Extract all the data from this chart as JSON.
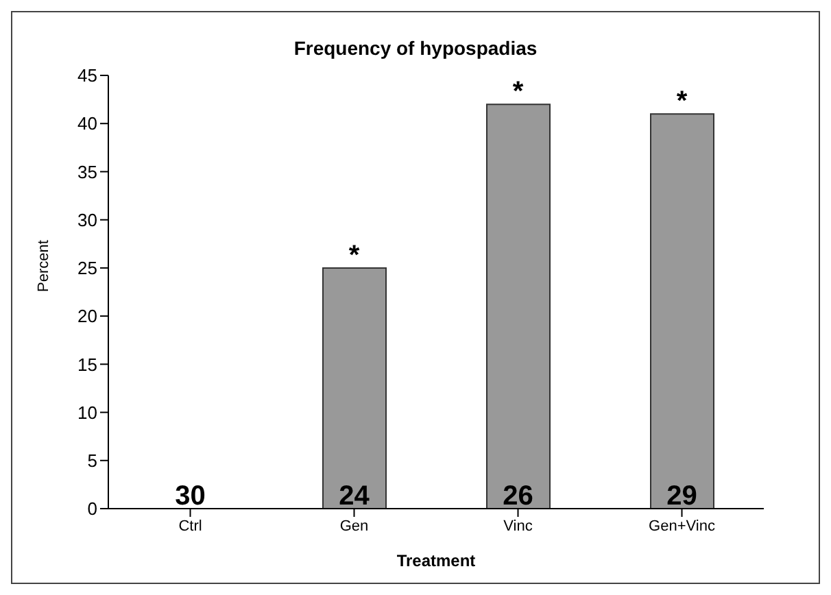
{
  "chart_data": {
    "type": "bar",
    "title": "Frequency of hypospadias",
    "xlabel": "Treatment",
    "ylabel": "Percent",
    "categories": [
      "Ctrl",
      "Gen",
      "Vinc",
      "Gen+Vinc"
    ],
    "values": [
      0,
      25,
      42,
      41
    ],
    "color": "#999999",
    "ylim": [
      0,
      45
    ],
    "yticks": [
      0,
      5,
      10,
      15,
      20,
      25,
      30,
      35,
      40,
      45
    ],
    "grid": false,
    "legend": false,
    "annotations": [
      {
        "text": "*",
        "x": "Gen",
        "y": 25
      },
      {
        "text": "*",
        "x": "Vinc",
        "y": 42
      },
      {
        "text": "*",
        "x": "Gen+Vinc",
        "y": 41
      },
      {
        "text": "30",
        "x": "Ctrl",
        "y": 0
      },
      {
        "text": "24",
        "x": "Gen",
        "y": 0
      },
      {
        "text": "26",
        "x": "Vinc",
        "y": 0
      },
      {
        "text": "29",
        "x": "Gen+Vinc",
        "y": 0
      }
    ]
  }
}
